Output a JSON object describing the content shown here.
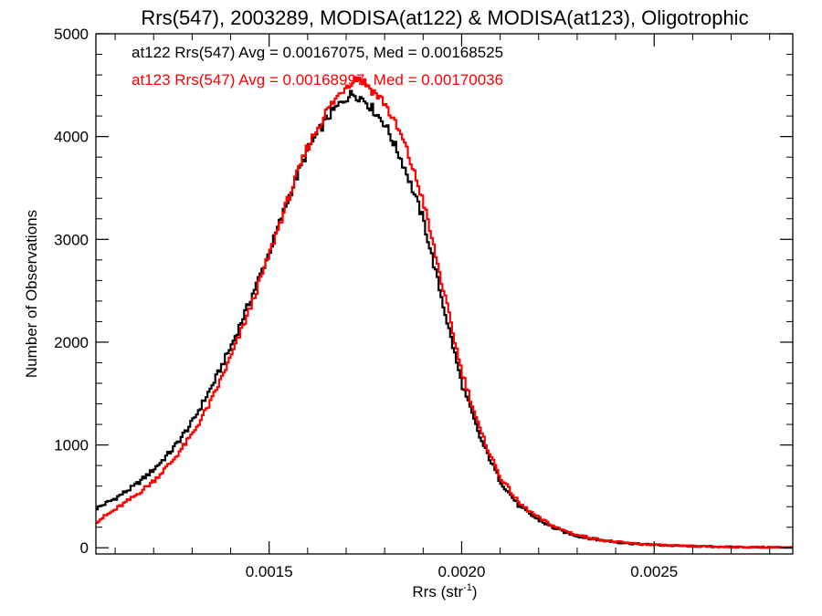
{
  "chart_data": {
    "type": "line",
    "title": "Rrs(547), 2003289, MODISA(at122) & MODISA(at123), Oligotrophic",
    "xlabel": "Rrs (str",
    "xlabel_superscript": "-1",
    "xlabel_suffix": ")",
    "ylabel": "Number of Observations",
    "xlim": [
      0.00105,
      0.00286
    ],
    "ylim": [
      -60,
      5000
    ],
    "xticks": [
      {
        "value": 0.0015,
        "label": "0.0015"
      },
      {
        "value": 0.002,
        "label": "0.0020"
      },
      {
        "value": 0.0025,
        "label": "0.0025"
      }
    ],
    "yticks": [
      {
        "value": 0,
        "label": "0"
      },
      {
        "value": 1000,
        "label": "1000"
      },
      {
        "value": 2000,
        "label": "2000"
      },
      {
        "value": 3000,
        "label": "3000"
      },
      {
        "value": 4000,
        "label": "4000"
      },
      {
        "value": 5000,
        "label": "5000"
      }
    ],
    "grid": false,
    "annotations": [
      {
        "text": "at122 Rrs(547) Avg = 0.00167075, Med = 0.00168525",
        "color": "#000000"
      },
      {
        "text": "at123 Rrs(547) Avg = 0.00168997, Med = 0.00170036",
        "color": "#ff0000"
      }
    ],
    "series": [
      {
        "color": "#000000",
        "x": [
          0.00105,
          0.0011,
          0.00115,
          0.0012,
          0.00125,
          0.0013,
          0.00135,
          0.0014,
          0.00145,
          0.0015,
          0.00155,
          0.0016,
          0.00165,
          0.0017,
          0.00172,
          0.00175,
          0.0018,
          0.00185,
          0.0019,
          0.00195,
          0.002,
          0.00205,
          0.0021,
          0.00215,
          0.0022,
          0.00225,
          0.0023,
          0.00235,
          0.0024,
          0.00245,
          0.0025,
          0.00255,
          0.0026,
          0.00265,
          0.0027,
          0.00275,
          0.0028,
          0.00286
        ],
        "values": [
          380,
          480,
          600,
          760,
          960,
          1220,
          1560,
          1950,
          2400,
          2870,
          3400,
          3870,
          4180,
          4380,
          4420,
          4350,
          4130,
          3720,
          3200,
          2400,
          1600,
          1050,
          650,
          400,
          270,
          175,
          115,
          80,
          55,
          38,
          28,
          20,
          15,
          11,
          8,
          6,
          5,
          4
        ]
      },
      {
        "color": "#ff0000",
        "x": [
          0.00105,
          0.0011,
          0.00115,
          0.0012,
          0.00125,
          0.0013,
          0.00135,
          0.0014,
          0.00145,
          0.0015,
          0.00155,
          0.0016,
          0.00165,
          0.0017,
          0.00173,
          0.00175,
          0.0018,
          0.00185,
          0.0019,
          0.00195,
          0.002,
          0.00205,
          0.0021,
          0.00215,
          0.0022,
          0.00225,
          0.0023,
          0.00235,
          0.0024,
          0.00245,
          0.0025,
          0.00255,
          0.0026,
          0.00265,
          0.0027,
          0.00275,
          0.0028,
          0.00286
        ],
        "values": [
          250,
          370,
          500,
          650,
          850,
          1100,
          1430,
          1850,
          2320,
          2850,
          3400,
          3900,
          4250,
          4500,
          4580,
          4520,
          4330,
          3950,
          3380,
          2550,
          1720,
          1120,
          690,
          430,
          290,
          190,
          125,
          85,
          58,
          40,
          29,
          21,
          15,
          11,
          8,
          6,
          5,
          4
        ]
      }
    ]
  }
}
